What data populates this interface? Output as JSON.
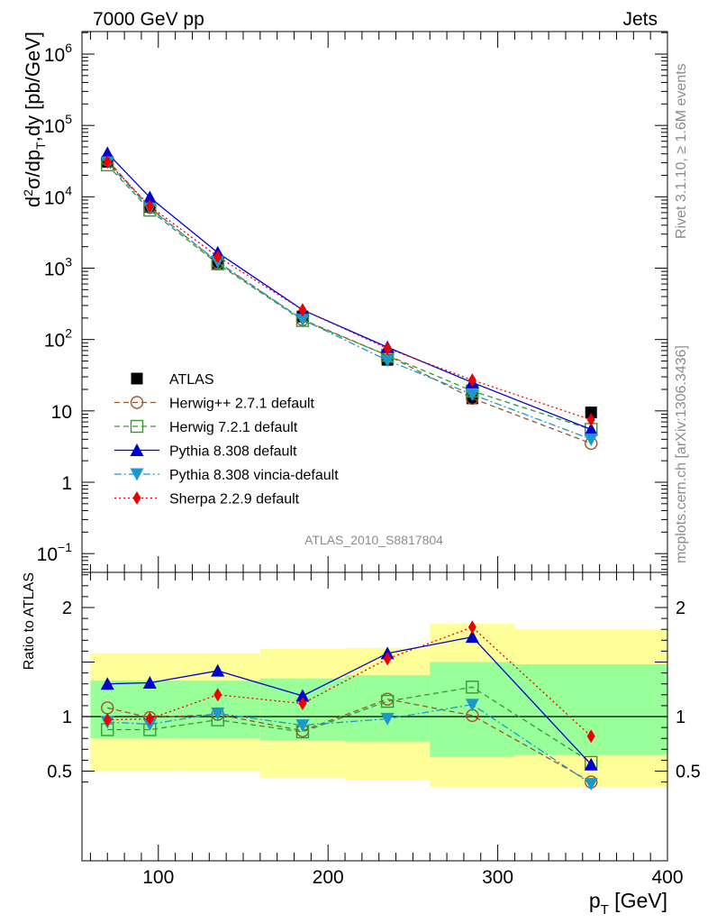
{
  "header": {
    "left": "7000 GeV pp",
    "right": "Jets",
    "side_top": "Rivet 3.1.10, ≥ 1.6M events",
    "side_bottom": "mcplots.cern.ch [arXiv:1306.3436]",
    "analysis_id": "ATLAS_2010_S8817804"
  },
  "chart_data": [
    {
      "type": "line",
      "panel": "main",
      "ylabel": "d²σ/dp_T,dy [pb/GeV]",
      "yscale": "log",
      "ylim": [
        0.05,
        2000000
      ],
      "xlim": [
        55,
        400
      ],
      "y_ticks": [
        "10^-1",
        "1",
        "10",
        "10^2",
        "10^3",
        "10^4",
        "10^5",
        "10^6"
      ],
      "legend_position": "lower-left",
      "x": [
        70,
        95,
        135,
        185,
        235,
        285,
        355
      ],
      "series": [
        {
          "name": "ATLAS",
          "marker": "square-filled",
          "color": "#000000",
          "values": [
            31000,
            7200,
            1180,
            210,
            52,
            15,
            9.5
          ]
        },
        {
          "name": "Herwig++ 2.7.1 default",
          "marker": "circle-open",
          "color": "#a0522d",
          "dash": "dashed",
          "values": [
            33000,
            7100,
            1200,
            190,
            60,
            15,
            3.5
          ]
        },
        {
          "name": "Herwig 7.2.1 default",
          "marker": "square-open",
          "color": "#339933",
          "dash": "dashed",
          "values": [
            28000,
            6500,
            1150,
            185,
            60,
            19,
            5.5
          ]
        },
        {
          "name": "Pythia 8.308 default",
          "marker": "triangle-up",
          "color": "#0000cc",
          "dash": "solid",
          "values": [
            41000,
            9800,
            1650,
            260,
            78,
            25,
            5.5
          ]
        },
        {
          "name": "Pythia 8.308 vincia-default",
          "marker": "triangle-down",
          "color": "#1a9acc",
          "dash": "dashdot",
          "values": [
            30500,
            6900,
            1230,
            190,
            51,
            17,
            4.0
          ]
        },
        {
          "name": "Sherpa 2.2.9 default",
          "marker": "diamond",
          "color": "#ee0000",
          "dash": "dotted",
          "values": [
            31000,
            7400,
            1450,
            260,
            75,
            27,
            7.5
          ]
        }
      ]
    },
    {
      "type": "line",
      "panel": "ratio",
      "xlabel": "p_T [GeV]",
      "ylabel": "Ratio to ATLAS",
      "ylim": [
        0.35,
        2.4
      ],
      "y_ticks": [
        0.5,
        1,
        2
      ],
      "x_ticks": [
        100,
        200,
        300,
        400
      ],
      "x": [
        70,
        95,
        135,
        185,
        235,
        285,
        355
      ],
      "bands": {
        "edges": [
          60,
          110,
          160,
          210,
          260,
          310,
          400
        ],
        "outer_low": [
          0.5,
          0.5,
          0.44,
          0.42,
          0.35,
          0.35
        ],
        "outer_high": [
          1.58,
          1.58,
          1.62,
          1.63,
          1.85,
          1.8
        ],
        "inner_low": [
          0.8,
          0.8,
          0.78,
          0.77,
          0.63,
          0.65
        ],
        "inner_high": [
          1.33,
          1.33,
          1.35,
          1.38,
          1.5,
          1.48
        ]
      },
      "series": [
        {
          "name": "Herwig++ 2.7.1 default",
          "values": [
            1.08,
            0.99,
            1.02,
            0.87,
            1.16,
            1.01,
            0.4
          ]
        },
        {
          "name": "Herwig 7.2.1 default",
          "values": [
            0.88,
            0.88,
            0.97,
            0.86,
            1.14,
            1.27,
            0.58
          ]
        },
        {
          "name": "Pythia 8.308 default",
          "values": [
            1.3,
            1.31,
            1.42,
            1.19,
            1.58,
            1.73,
            0.56
          ]
        },
        {
          "name": "Pythia 8.308 vincia-default",
          "values": [
            0.95,
            0.93,
            1.03,
            0.92,
            0.98,
            1.11,
            0.38
          ]
        },
        {
          "name": "Sherpa 2.2.9 default",
          "values": [
            0.97,
            0.98,
            1.2,
            1.12,
            1.53,
            1.82,
            0.82
          ]
        }
      ]
    }
  ]
}
